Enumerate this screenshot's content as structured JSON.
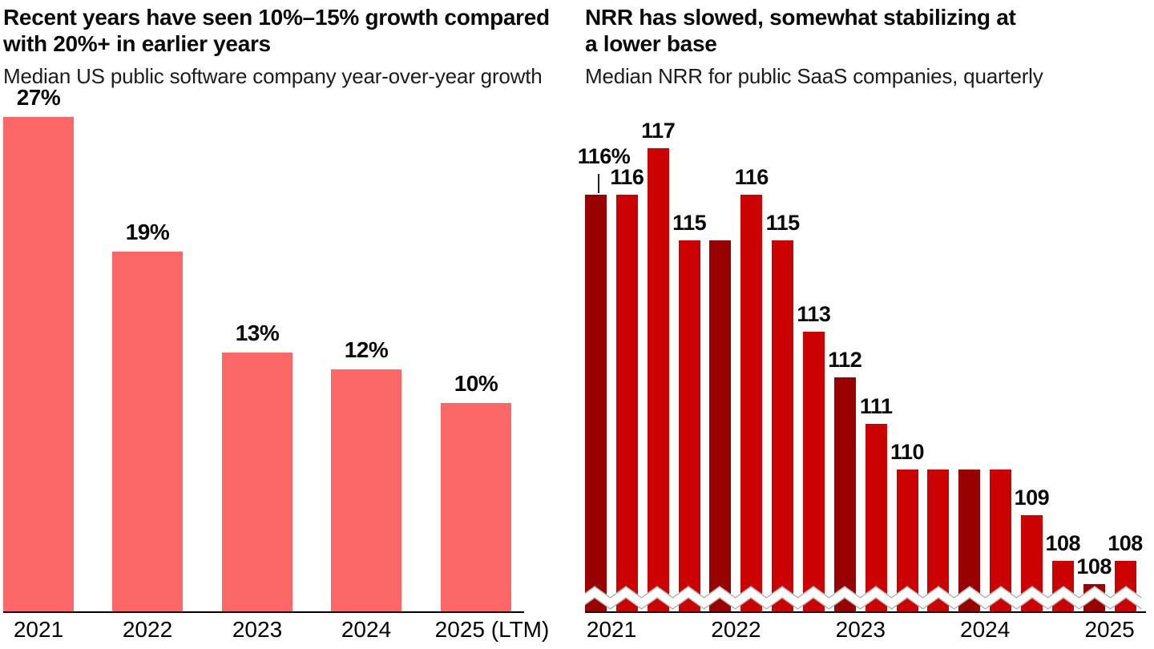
{
  "chart_data": [
    {
      "type": "bar",
      "title": "Recent years have seen 10%–15% growth compared with 20%+ in earlier years",
      "title_lines": [
        "Recent years have seen 10%–15% growth compared",
        "with 20%+ in earlier years"
      ],
      "subtitle": "Median US public software company year-over-year growth",
      "categories": [
        "2021",
        "2022",
        "2023",
        "2024",
        "2025 (LTM)"
      ],
      "values": [
        27,
        19,
        13,
        12,
        10
      ],
      "value_labels": [
        "27%",
        "19%",
        "13%",
        "12%",
        "10%"
      ],
      "unit": "%",
      "bar_color": "#FC6868",
      "ylim": [
        0,
        30
      ],
      "grid": false,
      "legend": false
    },
    {
      "type": "bar",
      "title": "NRR has slowed, somewhat stabilizing at a lower base",
      "title_lines": [
        "NRR has slowed, somewhat stabilizing at",
        "a lower base"
      ],
      "subtitle": "Median NRR for public SaaS companies, quarterly",
      "unit": "%",
      "bright_color": "#CC0202",
      "dark_color": "#990000",
      "axis_break": true,
      "year_labels": [
        "2021",
        "2022",
        "2023",
        "2024",
        "2025"
      ],
      "bars": [
        {
          "quarter": "2021 Q1",
          "value": 116,
          "label": "116%",
          "dark": true,
          "leader": true
        },
        {
          "quarter": "2021 Q2",
          "value": 116,
          "label": "116",
          "dark": false
        },
        {
          "quarter": "2021 Q3",
          "value": 117,
          "label": "117",
          "dark": false
        },
        {
          "quarter": "2021 Q4",
          "value": 115,
          "label": "115",
          "dark": false
        },
        {
          "quarter": "2022 Q1",
          "value": 115,
          "label": null,
          "dark": true
        },
        {
          "quarter": "2022 Q2",
          "value": 116,
          "label": "116",
          "dark": false
        },
        {
          "quarter": "2022 Q3",
          "value": 115,
          "label": "115",
          "dark": false
        },
        {
          "quarter": "2022 Q4",
          "value": 113,
          "label": "113",
          "dark": false
        },
        {
          "quarter": "2023 Q1",
          "value": 112,
          "label": "112",
          "dark": true
        },
        {
          "quarter": "2023 Q2",
          "value": 111,
          "label": "111",
          "dark": false
        },
        {
          "quarter": "2023 Q3",
          "value": 110,
          "label": "110",
          "dark": false
        },
        {
          "quarter": "2023 Q4",
          "value": 110,
          "label": null,
          "dark": false
        },
        {
          "quarter": "2024 Q1",
          "value": 110,
          "label": null,
          "dark": true
        },
        {
          "quarter": "2024 Q2",
          "value": 110,
          "label": null,
          "dark": false
        },
        {
          "quarter": "2024 Q3",
          "value": 109,
          "label": "109",
          "dark": false
        },
        {
          "quarter": "2024 Q4",
          "value": 108,
          "label": "108",
          "dark": false
        },
        {
          "quarter": "2025 Q1",
          "value": 108,
          "label": "108",
          "dark": true,
          "display_value": 107.5
        },
        {
          "quarter": "2025 Q2",
          "value": 108,
          "label": "108",
          "dark": false
        }
      ]
    }
  ]
}
